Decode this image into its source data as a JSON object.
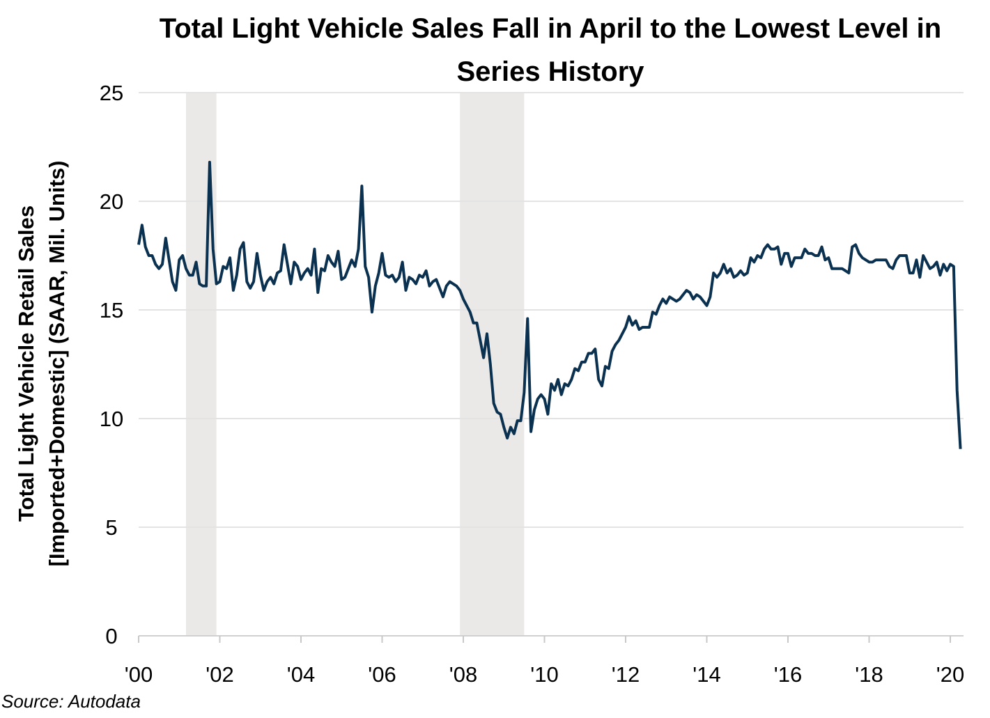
{
  "chart_data": {
    "type": "line",
    "title": "Total Light Vehicle Sales Fall in April to the Lowest Level in Series History",
    "ylabel": "Total Light Vehicle Retail Sales [Imported+Domestic] (SAAR, Mil. Units)",
    "ylabel_lines": [
      "Total Light Vehicle Retail Sales",
      "[Imported+Domestic] (SAAR, Mil. Units)"
    ],
    "xlabel": "",
    "ylim": [
      0,
      25
    ],
    "yticks": [
      "0",
      "5",
      "10",
      "15",
      "20",
      "25"
    ],
    "xticks": [
      {
        "year": 2000,
        "label": "'00"
      },
      {
        "year": 2002,
        "label": "'02"
      },
      {
        "year": 2004,
        "label": "'04"
      },
      {
        "year": 2006,
        "label": "'06"
      },
      {
        "year": 2008,
        "label": "'08"
      },
      {
        "year": 2010,
        "label": "'10"
      },
      {
        "year": 2012,
        "label": "'12"
      },
      {
        "year": 2014,
        "label": "'14"
      },
      {
        "year": 2016,
        "label": "'16"
      },
      {
        "year": 2018,
        "label": "'18"
      },
      {
        "year": 2020,
        "label": "'20"
      }
    ],
    "grid": "horizontal",
    "line_color": "#0b3150",
    "shading_color": "#ebe9e7",
    "recessions": [
      [
        "2001-03",
        "2001-11"
      ],
      [
        "2007-12",
        "2009-06"
      ]
    ],
    "monthly_values_by_year": {
      "2000": [
        18.0,
        18.9,
        17.9,
        17.5,
        17.5,
        17.1,
        16.9,
        17.1,
        18.3,
        17.3,
        16.3,
        15.9
      ],
      "2001": [
        17.3,
        17.5,
        16.9,
        16.6,
        16.6,
        17.2,
        16.2,
        16.1,
        16.1,
        21.8,
        17.8,
        16.2
      ],
      "2002": [
        16.3,
        17.0,
        16.9,
        17.4,
        15.9,
        16.6,
        17.8,
        18.1,
        16.3,
        16.0,
        16.3,
        17.6
      ],
      "2003": [
        16.6,
        15.9,
        16.3,
        16.5,
        16.2,
        16.7,
        16.8,
        18.0,
        17.1,
        16.2,
        17.2,
        17.0
      ],
      "2004": [
        16.4,
        16.7,
        16.9,
        16.6,
        17.8,
        15.8,
        16.9,
        16.8,
        17.5,
        17.2,
        17.0,
        17.7
      ],
      "2005": [
        16.4,
        16.5,
        16.9,
        17.3,
        17.0,
        17.8,
        20.7,
        17.0,
        16.5,
        14.9,
        16.1,
        16.7
      ],
      "2006": [
        17.6,
        16.6,
        16.5,
        16.6,
        16.3,
        16.5,
        17.2,
        15.9,
        16.5,
        16.4,
        16.2,
        16.6
      ],
      "2007": [
        16.5,
        16.8,
        16.1,
        16.3,
        16.4,
        16.0,
        15.6,
        16.1,
        16.3,
        16.2,
        16.1,
        15.9
      ],
      "2008": [
        15.5,
        15.2,
        14.9,
        14.4,
        14.4,
        13.6,
        12.8,
        13.9,
        12.5,
        10.7,
        10.3,
        10.2
      ],
      "2009": [
        9.6,
        9.1,
        9.6,
        9.3,
        9.9,
        9.9,
        11.2,
        14.6,
        9.4,
        10.4,
        10.9,
        11.1
      ],
      "2010": [
        10.9,
        10.2,
        11.6,
        11.3,
        11.8,
        11.1,
        11.6,
        11.5,
        11.8,
        12.3,
        12.2,
        12.6
      ],
      "2011": [
        12.6,
        13.0,
        13.0,
        13.2,
        11.8,
        11.5,
        12.4,
        12.3,
        13.1,
        13.4,
        13.6,
        13.9
      ],
      "2012": [
        14.2,
        14.7,
        14.3,
        14.5,
        14.1,
        14.2,
        14.2,
        14.2,
        14.9,
        14.8,
        15.2,
        15.5
      ],
      "2013": [
        15.3,
        15.6,
        15.5,
        15.4,
        15.5,
        15.7,
        15.9,
        15.8,
        15.5,
        15.7,
        15.6,
        15.4
      ],
      "2014": [
        15.2,
        15.6,
        16.7,
        16.5,
        16.7,
        17.1,
        16.7,
        16.9,
        16.5,
        16.6,
        16.8,
        16.6
      ],
      "2015": [
        16.7,
        17.4,
        17.2,
        17.5,
        17.4,
        17.8,
        18.0,
        17.8,
        17.8,
        17.9,
        17.1,
        17.6
      ],
      "2016": [
        17.6,
        17.0,
        17.4,
        17.4,
        17.4,
        17.8,
        17.6,
        17.6,
        17.5,
        17.5,
        17.9,
        17.3
      ],
      "2017": [
        17.4,
        16.9,
        16.9,
        16.9,
        16.9,
        16.8,
        16.7,
        17.9,
        18.0,
        17.6,
        17.4,
        17.3
      ],
      "2018": [
        17.2,
        17.2,
        17.3,
        17.3,
        17.3,
        17.3,
        17.0,
        16.9,
        17.3,
        17.5,
        17.5,
        17.5
      ],
      "2019": [
        16.7,
        16.7,
        17.3,
        16.5,
        17.5,
        17.2,
        16.9,
        17.0,
        17.2,
        16.6,
        17.1,
        16.8
      ],
      "2020": [
        17.1,
        17.0,
        11.3,
        8.6
      ]
    },
    "source": "Source: Autodata"
  }
}
